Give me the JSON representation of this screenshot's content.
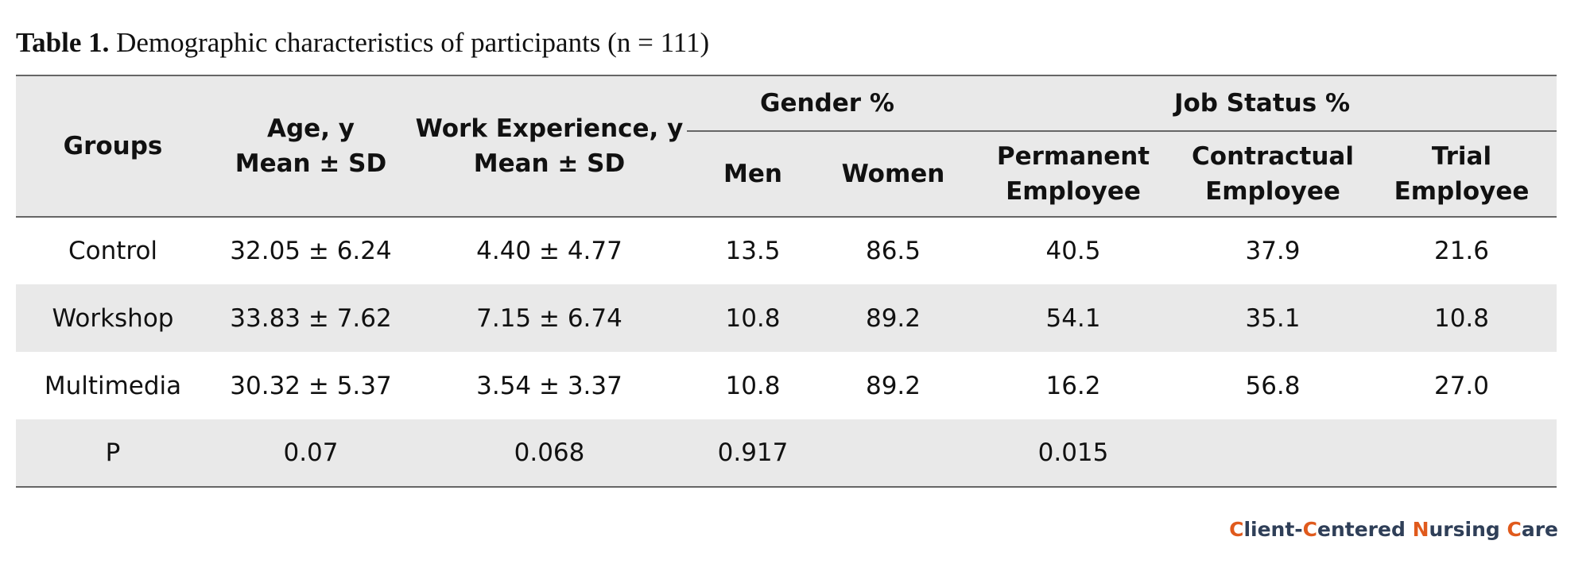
{
  "caption": {
    "label": "Table 1.",
    "text": "Demographic characteristics of participants (n = 111)"
  },
  "table": {
    "headers": {
      "groups": "Groups",
      "age_line1": "Age, y",
      "age_line2": "Mean ± SD",
      "work_line1": "Work Experience, y",
      "work_line2": "Mean ± SD",
      "gender": "Gender %",
      "job_status": "Job Status %",
      "men": "Men",
      "women": "Women",
      "permanent_line1": "Permanent",
      "permanent_line2": "Employee",
      "contractual_line1": "Contractual",
      "contractual_line2": "Employee",
      "trial_line1": "Trial",
      "trial_line2": "Employee"
    },
    "rows": [
      {
        "group": "Control",
        "age": "32.05 ± 6.24",
        "work": "4.40 ± 4.77",
        "men": "13.5",
        "women": "86.5",
        "permanent": "40.5",
        "contractual": "37.9",
        "trial": "21.6"
      },
      {
        "group": "Workshop",
        "age": "33.83 ± 7.62",
        "work": "7.15 ± 6.74",
        "men": "10.8",
        "women": "89.2",
        "permanent": "54.1",
        "contractual": "35.1",
        "trial": "10.8"
      },
      {
        "group": "Multimedia",
        "age": "30.32 ± 5.37",
        "work": "3.54 ± 3.37",
        "men": "10.8",
        "women": "89.2",
        "permanent": "16.2",
        "contractual": "56.8",
        "trial": "27.0"
      },
      {
        "group": "P",
        "age": "0.07",
        "work": "0.068",
        "men": "0.917",
        "women": "",
        "permanent": "0.015",
        "contractual": "",
        "trial": ""
      }
    ]
  },
  "brand": {
    "c1": "C",
    "t1": "lient-",
    "c2": "C",
    "t2": "entered ",
    "c3": "N",
    "t3": "ursing ",
    "c4": "C",
    "t4": "are",
    "accent_color": "#e05a1c",
    "text_color": "#2f3f58"
  }
}
